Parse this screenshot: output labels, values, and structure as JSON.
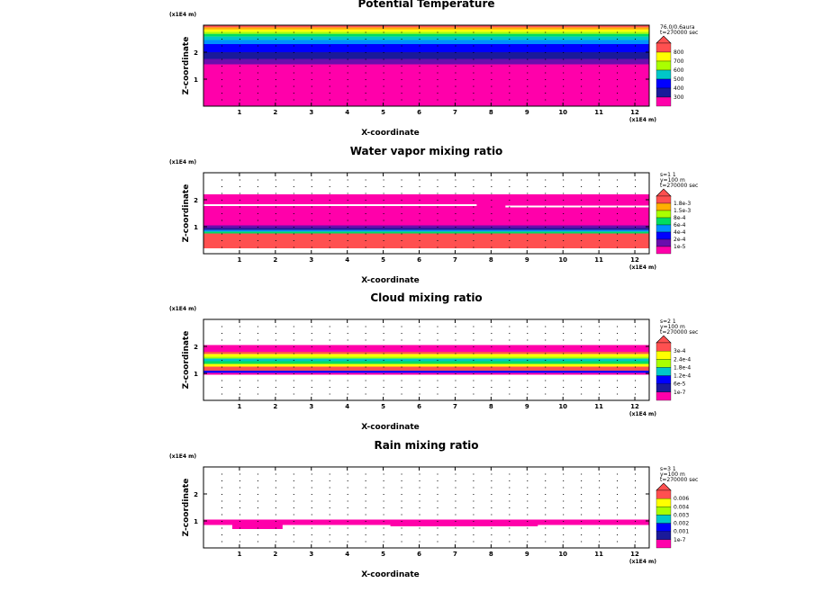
{
  "chart_data": [
    {
      "type": "contour",
      "title": "Potential Temperature",
      "xlabel": "X-coordinate",
      "ylabel": "Z-coordinate",
      "x_unit": "(x1E4 m)",
      "y_unit": "(x1E4 m)",
      "x_ticks": [
        "1",
        "2",
        "3",
        "4",
        "5",
        "6",
        "7",
        "8",
        "9",
        "10",
        "11",
        "12"
      ],
      "y_ticks": [
        "1",
        "2"
      ],
      "xlim": [
        0,
        12.4
      ],
      "ylim": [
        0,
        3.0
      ],
      "info": [
        "76.0/0.6aura",
        "t=270000 sec"
      ],
      "legend_levels": [
        "800",
        "700",
        "600",
        "500",
        "400",
        "300"
      ],
      "colors": [
        "#ff00aa",
        "#6a0dad",
        "#1a1a9a",
        "#0000ff",
        "#0090ff",
        "#00c8c8",
        "#00dd60",
        "#aaff00",
        "#ffff00",
        "#ffb000",
        "#ff5050"
      ],
      "bands": [
        {
          "z0": 0,
          "z1": 1.55,
          "c": 0
        },
        {
          "z0": 1.55,
          "z1": 1.75,
          "c": 1
        },
        {
          "z0": 1.75,
          "z1": 2.0,
          "c": 2
        },
        {
          "z0": 2.0,
          "z1": 2.3,
          "c": 3
        },
        {
          "z0": 2.3,
          "z1": 2.45,
          "c": 4
        },
        {
          "z0": 2.45,
          "z1": 2.58,
          "c": 5
        },
        {
          "z0": 2.58,
          "z1": 2.68,
          "c": 6
        },
        {
          "z0": 2.68,
          "z1": 2.76,
          "c": 7
        },
        {
          "z0": 2.76,
          "z1": 2.84,
          "c": 8
        },
        {
          "z0": 2.84,
          "z1": 2.92,
          "c": 9
        },
        {
          "z0": 2.92,
          "z1": 3.0,
          "c": 10
        }
      ]
    },
    {
      "type": "contour",
      "title": "Water vapor mixing ratio",
      "xlabel": "X-coordinate",
      "ylabel": "Z-coordinate",
      "x_unit": "(x1E4 m)",
      "y_unit": "(x1E4 m)",
      "x_ticks": [
        "1",
        "2",
        "3",
        "4",
        "5",
        "6",
        "7",
        "8",
        "9",
        "10",
        "11",
        "12"
      ],
      "y_ticks": [
        "1",
        "2"
      ],
      "xlim": [
        0,
        12.4
      ],
      "ylim": [
        0,
        3.0
      ],
      "info": [
        "s=1 1",
        "y=100 m",
        "t=270000 sec"
      ],
      "legend_levels": [
        "1.8e-3",
        "1.5e-3",
        "8e-4",
        "6e-4",
        "4e-4",
        "2e-4",
        "1e-5"
      ],
      "colors": [
        "#ff00aa",
        "#6a0dad",
        "#1a1a9a",
        "#0000ff",
        "#0090ff",
        "#00c8c8",
        "#00dd60",
        "#aaff00",
        "#ffff00",
        "#ffb000",
        "#ff5050"
      ],
      "bands": [
        {
          "z0": 0.2,
          "z1": 0.75,
          "c": 10
        },
        {
          "z0": 0.75,
          "z1": 0.82,
          "c": 6
        },
        {
          "z0": 0.82,
          "z1": 0.88,
          "c": 4
        },
        {
          "z0": 0.88,
          "z1": 0.95,
          "c": 2
        },
        {
          "z0": 0.95,
          "z1": 1.05,
          "c": 1
        },
        {
          "z0": 1.05,
          "z1": 2.2,
          "c": 0
        }
      ]
    },
    {
      "type": "contour",
      "title": "Cloud mixing ratio",
      "xlabel": "X-coordinate",
      "ylabel": "Z-coordinate",
      "x_unit": "(x1E4 m)",
      "y_unit": "(x1E4 m)",
      "x_ticks": [
        "1",
        "2",
        "3",
        "4",
        "5",
        "6",
        "7",
        "8",
        "9",
        "10",
        "11",
        "12"
      ],
      "y_ticks": [
        "1",
        "2"
      ],
      "xlim": [
        0,
        12.4
      ],
      "ylim": [
        0,
        3.0
      ],
      "info": [
        "s=2 1",
        "y=100 m",
        "t=270000 sec"
      ],
      "legend_levels": [
        "3e-4",
        "2.4e-4",
        "1.8e-4",
        "1.2e-4",
        "6e-5",
        "1e-7"
      ],
      "colors": [
        "#ff00aa",
        "#6a0dad",
        "#1a1a9a",
        "#0000ff",
        "#0090ff",
        "#00c8c8",
        "#00dd60",
        "#aaff00",
        "#ffff00",
        "#ffb000",
        "#ff5050"
      ],
      "bands": [
        {
          "z0": 0.95,
          "z1": 1.02,
          "c": 0
        },
        {
          "z0": 1.02,
          "z1": 1.1,
          "c": 3
        },
        {
          "z0": 1.1,
          "z1": 1.25,
          "c": 10
        },
        {
          "z0": 1.25,
          "z1": 1.35,
          "c": 8
        },
        {
          "z0": 1.35,
          "z1": 1.45,
          "c": 6
        },
        {
          "z0": 1.45,
          "z1": 1.55,
          "c": 5
        },
        {
          "z0": 1.55,
          "z1": 1.62,
          "c": 7
        },
        {
          "z0": 1.62,
          "z1": 1.72,
          "c": 8
        },
        {
          "z0": 1.72,
          "z1": 1.8,
          "c": 10
        },
        {
          "z0": 1.8,
          "z1": 2.05,
          "c": 0
        }
      ]
    },
    {
      "type": "contour",
      "title": "Rain mixing ratio",
      "xlabel": "X-coordinate",
      "ylabel": "Z-coordinate",
      "x_unit": "(x1E4 m)",
      "y_unit": "(x1E4 m)",
      "x_ticks": [
        "1",
        "2",
        "3",
        "4",
        "5",
        "6",
        "7",
        "8",
        "9",
        "10",
        "11",
        "12"
      ],
      "y_ticks": [
        "1",
        "2"
      ],
      "xlim": [
        0,
        12.4
      ],
      "ylim": [
        0,
        3.0
      ],
      "info": [
        "s=3 1",
        "y=100 m",
        "t=270000 sec"
      ],
      "legend_levels": [
        "0.006",
        "0.004",
        "0.003",
        "0.002",
        "0.001",
        "1e-7"
      ],
      "colors": [
        "#ff00aa",
        "#6a0dad",
        "#1a1a9a",
        "#0000ff",
        "#0090ff",
        "#00c8c8",
        "#00dd60",
        "#aaff00",
        "#ffff00",
        "#ffb000",
        "#ff5050"
      ],
      "bands": [
        {
          "z0": 0.85,
          "z1": 1.05,
          "c": 0
        }
      ],
      "patches": [
        {
          "x0": 0.8,
          "x1": 2.2,
          "z0": 0.7,
          "z1": 1.02,
          "c": 0
        },
        {
          "x0": 2.3,
          "x1": 4.8,
          "z0": 0.85,
          "z1": 1.02,
          "c": 0
        },
        {
          "x0": 5.2,
          "x1": 9.3,
          "z0": 0.8,
          "z1": 1.04,
          "c": 0
        },
        {
          "x0": 9.8,
          "x1": 11.1,
          "z0": 0.85,
          "z1": 1.0,
          "c": 0
        },
        {
          "x0": 11.6,
          "x1": 12.2,
          "z0": 0.88,
          "z1": 0.96,
          "c": 0
        }
      ]
    }
  ]
}
